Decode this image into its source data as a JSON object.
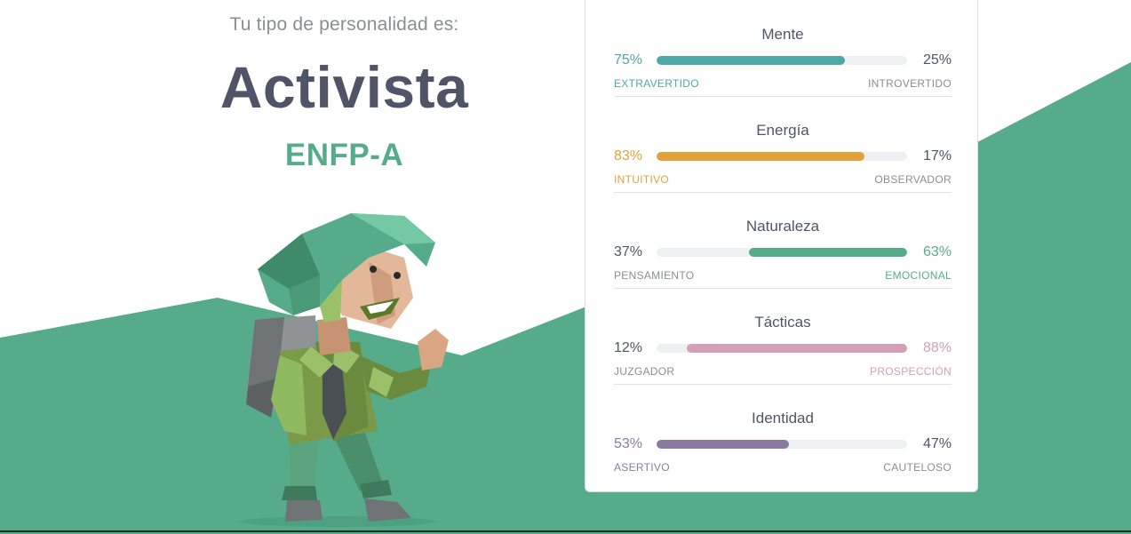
{
  "header": {
    "intro": "Tu tipo de personalidad es:",
    "type_name": "Activista",
    "type_code": "ENFP-A"
  },
  "illustration": {
    "icon": "activist-character-icon"
  },
  "colors": {
    "green": "#56ac8a",
    "teal": "#4ea8a8",
    "orange": "#e2a23a",
    "pink": "#d3a0b8",
    "purple": "#8a7aa0",
    "text": "#4f5566"
  },
  "traits": [
    {
      "title": "Mente",
      "left_pct": "75%",
      "right_pct": "25%",
      "left_label": "EXTRAVERTIDO",
      "right_label": "INTROVERTIDO",
      "fill": 0.75,
      "side": "left",
      "color": "#4ea8a8"
    },
    {
      "title": "Energía",
      "left_pct": "83%",
      "right_pct": "17%",
      "left_label": "INTUITIVO",
      "right_label": "OBSERVADOR",
      "fill": 0.83,
      "side": "left",
      "color": "#e2a23a"
    },
    {
      "title": "Naturaleza",
      "left_pct": "37%",
      "right_pct": "63%",
      "left_label": "PENSAMIENTO",
      "right_label": "EMOCIONAL",
      "fill": 0.63,
      "side": "right",
      "color": "#56ac8a"
    },
    {
      "title": "Tácticas",
      "left_pct": "12%",
      "right_pct": "88%",
      "left_label": "JUZGADOR",
      "right_label": "PROSPECCIÓN",
      "fill": 0.88,
      "side": "right",
      "color": "#d3a0b8"
    },
    {
      "title": "Identidad",
      "left_pct": "53%",
      "right_pct": "47%",
      "left_label": "ASERTIVO",
      "right_label": "CAUTELOSO",
      "fill": 0.53,
      "side": "left",
      "color": "#8a7aa0"
    }
  ]
}
